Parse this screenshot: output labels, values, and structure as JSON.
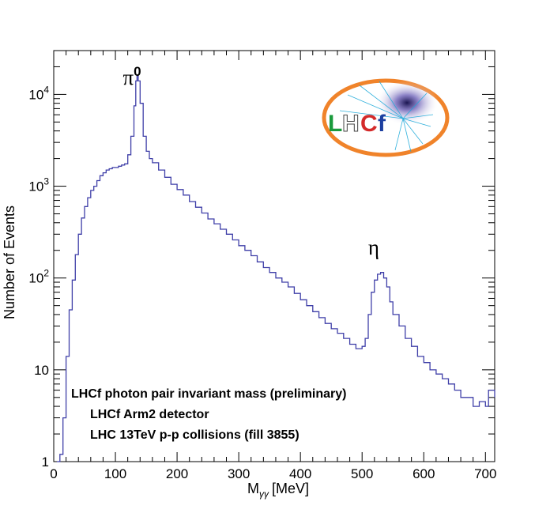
{
  "chart_data": {
    "type": "line",
    "title": "",
    "xlabel": "M",
    "xlabel_sub": "γγ",
    "xlabel_unit": "[MeV]",
    "ylabel": "Number of Events",
    "xlim": [
      0,
      715
    ],
    "ylim": [
      1,
      30000
    ],
    "y_scale": "log",
    "grid": false,
    "x_ticks": [
      0,
      100,
      200,
      300,
      400,
      500,
      600,
      700
    ],
    "y_ticks": [
      {
        "value": 1,
        "base": "1",
        "exp": ""
      },
      {
        "value": 10,
        "base": "10",
        "exp": ""
      },
      {
        "value": 100,
        "base": "10",
        "exp": "2"
      },
      {
        "value": 1000,
        "base": "10",
        "exp": "3"
      },
      {
        "value": 10000,
        "base": "10",
        "exp": "4"
      }
    ],
    "series": [
      {
        "color": "#3f3fa8",
        "x": [
          5,
          10,
          15,
          20,
          25,
          30,
          35,
          40,
          45,
          50,
          55,
          60,
          65,
          70,
          75,
          80,
          85,
          90,
          95,
          100,
          105,
          110,
          115,
          120,
          125,
          130,
          133,
          135,
          137,
          140,
          145,
          150,
          155,
          160,
          170,
          180,
          190,
          200,
          210,
          220,
          230,
          240,
          250,
          260,
          270,
          280,
          290,
          300,
          310,
          320,
          330,
          340,
          350,
          360,
          370,
          380,
          390,
          400,
          410,
          420,
          430,
          440,
          450,
          460,
          470,
          480,
          490,
          500,
          505,
          510,
          515,
          520,
          525,
          530,
          535,
          540,
          545,
          550,
          560,
          570,
          580,
          590,
          600,
          610,
          620,
          630,
          640,
          650,
          660,
          670,
          680,
          690,
          700,
          705,
          710,
          715
        ],
        "y": [
          1,
          1.2,
          3,
          14,
          45,
          95,
          180,
          300,
          450,
          600,
          750,
          900,
          1000,
          1150,
          1300,
          1400,
          1500,
          1550,
          1600,
          1600,
          1650,
          1700,
          1750,
          2200,
          3500,
          7500,
          14000,
          16000,
          14000,
          8000,
          3500,
          2400,
          2000,
          1800,
          1500,
          1250,
          1050,
          920,
          800,
          680,
          590,
          510,
          440,
          390,
          340,
          300,
          260,
          225,
          200,
          175,
          150,
          130,
          115,
          100,
          90,
          80,
          68,
          58,
          50,
          43,
          37,
          32,
          28,
          25,
          22,
          19,
          17,
          18,
          22,
          40,
          70,
          95,
          110,
          115,
          100,
          80,
          55,
          40,
          30,
          22,
          18,
          14,
          12,
          10,
          9,
          8,
          7,
          6,
          5,
          5,
          4,
          4.5,
          4,
          6,
          6,
          5
        ]
      }
    ],
    "annotations": [
      {
        "x": 130,
        "y": 30000,
        "text": "π",
        "sup": "0"
      },
      {
        "x": 515,
        "y": 180,
        "text": "η"
      }
    ]
  },
  "info_text": {
    "line1": "LHCf photon pair invariant mass (preliminary)",
    "line2": "LHCf Arm2 detector",
    "line3": "LHC 13TeV p-p collisions (fill 3855)"
  },
  "logo": {
    "letters": [
      "L",
      "H",
      "C",
      "f"
    ],
    "colors": [
      "#1a9a3c",
      "#ffffff",
      "#d42a2a",
      "#1c3fa0"
    ],
    "ring_color": "#f0832a"
  }
}
